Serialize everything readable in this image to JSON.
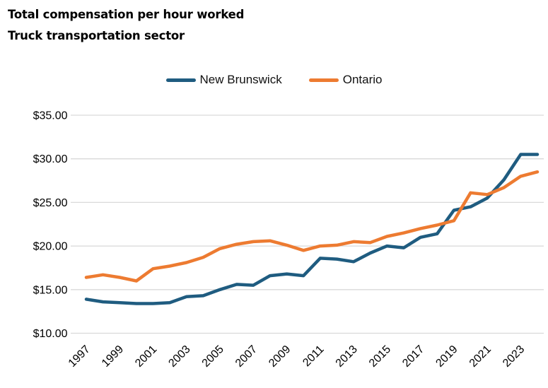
{
  "header": {
    "title": "Total compensation per hour worked",
    "subtitle": "Truck transportation sector"
  },
  "colors": {
    "new_brunswick_line": "#1F5C80",
    "ontario_line": "#ED7B31",
    "gridline": "#D9D9D9",
    "text": "#000000",
    "background": "#FFFFFF"
  },
  "chart_data": {
    "type": "line",
    "title": "Total compensation per hour worked",
    "subtitle": "Truck transportation sector",
    "x": [
      1997,
      1998,
      1999,
      2000,
      2001,
      2002,
      2003,
      2004,
      2005,
      2006,
      2007,
      2008,
      2009,
      2010,
      2011,
      2012,
      2013,
      2014,
      2015,
      2016,
      2017,
      2018,
      2019,
      2020,
      2021,
      2022,
      2023,
      2024
    ],
    "series": [
      {
        "name": "New Brunswick",
        "color": "#1F5C80",
        "values": [
          13.9,
          13.6,
          13.5,
          13.4,
          13.4,
          13.5,
          14.2,
          14.3,
          15.0,
          15.6,
          15.5,
          16.6,
          16.8,
          16.6,
          18.6,
          18.5,
          18.2,
          19.2,
          20.0,
          19.8,
          21.0,
          21.4,
          24.1,
          24.5,
          25.5,
          27.6,
          30.5,
          30.5
        ]
      },
      {
        "name": "Ontario",
        "color": "#ED7B31",
        "values": [
          16.4,
          16.7,
          16.4,
          16.0,
          17.4,
          17.7,
          18.1,
          18.7,
          19.7,
          20.2,
          20.5,
          20.6,
          20.1,
          19.5,
          20.0,
          20.1,
          20.5,
          20.4,
          21.1,
          21.5,
          22.0,
          22.4,
          22.9,
          26.1,
          25.9,
          26.7,
          28.0,
          28.5
        ]
      }
    ],
    "xlabel": "",
    "ylabel": "",
    "ylim": [
      10,
      35
    ],
    "ytick_step": 5,
    "ytick_labels": [
      "$10.00",
      "$15.00",
      "$20.00",
      "$25.00",
      "$30.00",
      "$35.00"
    ],
    "xtick_labels": [
      "1997",
      "1999",
      "2001",
      "2003",
      "2005",
      "2007",
      "2009",
      "2011",
      "2013",
      "2015",
      "2017",
      "2019",
      "2021",
      "2023"
    ],
    "grid": "horizontal",
    "legend_position": "top-center",
    "currency_prefix": "$"
  }
}
